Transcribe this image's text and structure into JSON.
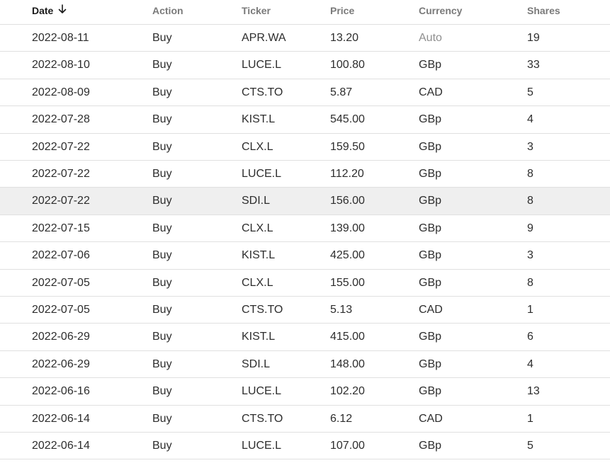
{
  "table": {
    "headers": {
      "date": "Date",
      "action": "Action",
      "ticker": "Ticker",
      "price": "Price",
      "currency": "Currency",
      "shares": "Shares"
    },
    "sort": {
      "column": "date",
      "direction": "descending",
      "icon": "arrow-down-icon"
    },
    "hovered_row": 6,
    "rows": [
      {
        "date": "2022-08-11",
        "action": "Buy",
        "ticker": "APR.WA",
        "price": "13.20",
        "currency": "Auto",
        "shares": "19"
      },
      {
        "date": "2022-08-10",
        "action": "Buy",
        "ticker": "LUCE.L",
        "price": "100.80",
        "currency": "GBp",
        "shares": "33"
      },
      {
        "date": "2022-08-09",
        "action": "Buy",
        "ticker": "CTS.TO",
        "price": "5.87",
        "currency": "CAD",
        "shares": "5"
      },
      {
        "date": "2022-07-28",
        "action": "Buy",
        "ticker": "KIST.L",
        "price": "545.00",
        "currency": "GBp",
        "shares": "4"
      },
      {
        "date": "2022-07-22",
        "action": "Buy",
        "ticker": "CLX.L",
        "price": "159.50",
        "currency": "GBp",
        "shares": "3"
      },
      {
        "date": "2022-07-22",
        "action": "Buy",
        "ticker": "LUCE.L",
        "price": "112.20",
        "currency": "GBp",
        "shares": "8"
      },
      {
        "date": "2022-07-22",
        "action": "Buy",
        "ticker": "SDI.L",
        "price": "156.00",
        "currency": "GBp",
        "shares": "8"
      },
      {
        "date": "2022-07-15",
        "action": "Buy",
        "ticker": "CLX.L",
        "price": "139.00",
        "currency": "GBp",
        "shares": "9"
      },
      {
        "date": "2022-07-06",
        "action": "Buy",
        "ticker": "KIST.L",
        "price": "425.00",
        "currency": "GBp",
        "shares": "3"
      },
      {
        "date": "2022-07-05",
        "action": "Buy",
        "ticker": "CLX.L",
        "price": "155.00",
        "currency": "GBp",
        "shares": "8"
      },
      {
        "date": "2022-07-05",
        "action": "Buy",
        "ticker": "CTS.TO",
        "price": "5.13",
        "currency": "CAD",
        "shares": "1"
      },
      {
        "date": "2022-06-29",
        "action": "Buy",
        "ticker": "KIST.L",
        "price": "415.00",
        "currency": "GBp",
        "shares": "6"
      },
      {
        "date": "2022-06-29",
        "action": "Buy",
        "ticker": "SDI.L",
        "price": "148.00",
        "currency": "GBp",
        "shares": "4"
      },
      {
        "date": "2022-06-16",
        "action": "Buy",
        "ticker": "LUCE.L",
        "price": "102.20",
        "currency": "GBp",
        "shares": "13"
      },
      {
        "date": "2022-06-14",
        "action": "Buy",
        "ticker": "CTS.TO",
        "price": "6.12",
        "currency": "CAD",
        "shares": "1"
      },
      {
        "date": "2022-06-14",
        "action": "Buy",
        "ticker": "LUCE.L",
        "price": "107.00",
        "currency": "GBp",
        "shares": "5"
      }
    ]
  },
  "colors": {
    "text": "#2d2d2d",
    "muted_text": "#8f8f8f",
    "header_text": "#7a7a7a",
    "active_header_text": "#1a1a1a",
    "row_border": "#e0e0e0",
    "hover_background": "#efefef"
  }
}
